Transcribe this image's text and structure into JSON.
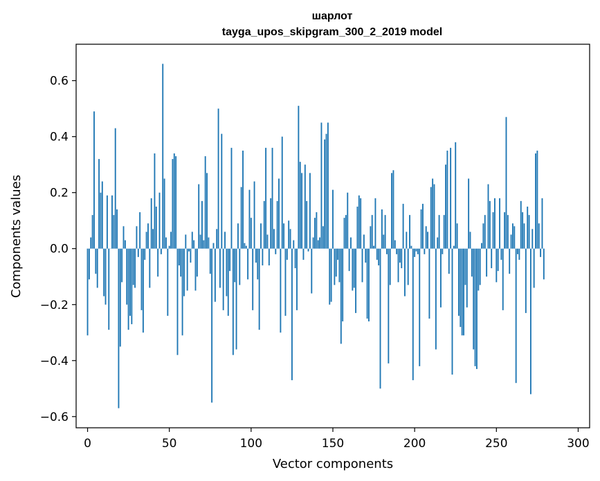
{
  "chart_data": {
    "type": "bar",
    "title": "шарлот",
    "subtitle": "tayga_upos_skipgram_300_2_2019 model",
    "xlabel": "Vector components",
    "ylabel": "Components values",
    "xlim": [
      -7,
      307
    ],
    "ylim": [
      -0.64,
      0.73
    ],
    "xticks": [
      0,
      50,
      100,
      150,
      200,
      250,
      300
    ],
    "yticks": [
      -0.6,
      -0.4,
      -0.2,
      0.0,
      0.2,
      0.4,
      0.6
    ],
    "xtick_labels": [
      "0",
      "50",
      "100",
      "150",
      "200",
      "250",
      "300"
    ],
    "ytick_labels": [
      "−0.6",
      "−0.4",
      "−0.2",
      "0.0",
      "0.2",
      "0.4",
      "0.6"
    ],
    "bar_color": "#1f77b4",
    "grid": false,
    "values": [
      -0.31,
      -0.11,
      0.04,
      0.12,
      0.49,
      -0.09,
      -0.14,
      0.32,
      0.2,
      0.24,
      -0.17,
      -0.2,
      0.19,
      -0.29,
      0.0,
      0.19,
      0.12,
      0.43,
      0.14,
      -0.57,
      -0.35,
      -0.12,
      0.08,
      0.03,
      -0.2,
      -0.29,
      -0.24,
      -0.27,
      -0.13,
      -0.14,
      0.08,
      -0.03,
      0.13,
      -0.22,
      -0.3,
      -0.04,
      0.06,
      0.09,
      -0.14,
      0.18,
      0.07,
      0.34,
      0.15,
      -0.1,
      0.2,
      -0.02,
      0.66,
      0.25,
      0.04,
      -0.24,
      0.01,
      0.06,
      0.32,
      0.34,
      0.33,
      -0.38,
      -0.06,
      -0.1,
      -0.31,
      -0.17,
      0.05,
      -0.15,
      -0.01,
      -0.05,
      0.06,
      0.03,
      -0.15,
      -0.1,
      0.23,
      0.05,
      0.17,
      0.03,
      0.33,
      0.27,
      0.04,
      -0.09,
      -0.55,
      0.02,
      -0.19,
      0.07,
      0.5,
      -0.14,
      0.41,
      -0.22,
      0.06,
      -0.17,
      -0.24,
      -0.08,
      0.36,
      -0.38,
      -0.12,
      -0.36,
      0.09,
      -0.13,
      0.22,
      0.35,
      0.02,
      0.01,
      -0.11,
      0.21,
      0.11,
      -0.22,
      0.24,
      -0.05,
      -0.11,
      -0.29,
      0.09,
      -0.06,
      0.17,
      0.36,
      0.05,
      -0.06,
      0.18,
      0.36,
      0.07,
      -0.02,
      0.17,
      0.25,
      -0.3,
      0.4,
      0.09,
      -0.24,
      -0.04,
      0.1,
      0.07,
      -0.47,
      0.03,
      -0.07,
      -0.22,
      0.51,
      0.31,
      0.27,
      -0.04,
      0.3,
      0.17,
      -0.01,
      0.27,
      -0.16,
      0.04,
      0.11,
      0.13,
      0.03,
      0.04,
      0.45,
      0.08,
      0.39,
      0.41,
      0.45,
      -0.2,
      -0.19,
      0.21,
      -0.13,
      -0.1,
      -0.04,
      -0.12,
      -0.34,
      -0.26,
      0.11,
      0.12,
      0.2,
      -0.08,
      0.04,
      -0.15,
      -0.14,
      -0.23,
      0.15,
      0.19,
      0.18,
      -0.12,
      0.05,
      -0.05,
      -0.25,
      -0.26,
      0.08,
      0.12,
      0.01,
      0.18,
      -0.04,
      -0.06,
      -0.5,
      0.14,
      0.05,
      0.12,
      -0.02,
      -0.41,
      -0.13,
      0.27,
      0.28,
      0.03,
      -0.02,
      -0.12,
      -0.05,
      -0.07,
      0.16,
      -0.17,
      0.06,
      -0.13,
      0.12,
      0.01,
      -0.47,
      -0.03,
      -0.01,
      -0.02,
      -0.42,
      0.14,
      0.16,
      -0.02,
      0.08,
      0.06,
      -0.25,
      0.22,
      0.25,
      0.23,
      -0.36,
      0.04,
      0.12,
      -0.21,
      -0.02,
      0.12,
      0.3,
      0.35,
      -0.09,
      0.36,
      -0.45,
      0.01,
      0.38,
      0.09,
      -0.24,
      -0.28,
      -0.31,
      -0.31,
      -0.13,
      -0.21,
      0.25,
      0.06,
      -0.1,
      -0.36,
      -0.42,
      -0.43,
      -0.15,
      -0.13,
      0.02,
      0.09,
      0.12,
      -0.1,
      0.23,
      0.17,
      -0.07,
      0.13,
      0.18,
      -0.12,
      -0.08,
      0.18,
      -0.04,
      -0.22,
      0.13,
      0.47,
      0.12,
      -0.09,
      0.05,
      0.09,
      0.08,
      -0.48,
      -0.02,
      -0.04,
      0.17,
      0.13,
      0.09,
      -0.23,
      0.15,
      0.12,
      -0.52,
      0.07,
      -0.14,
      0.34,
      0.35,
      0.09,
      -0.03,
      0.18,
      -0.11
    ]
  }
}
